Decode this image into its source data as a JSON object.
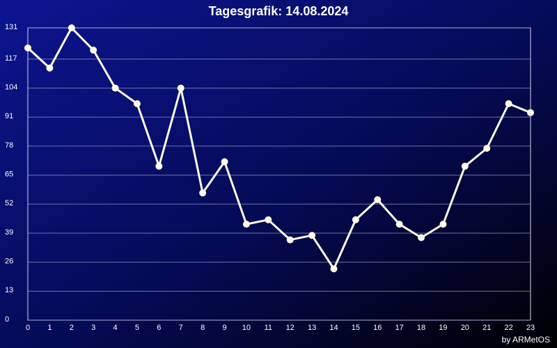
{
  "chart_data": {
    "type": "line",
    "title": "Tagesgrafik: 14.08.2024",
    "credit": "by ARMetOS",
    "x": [
      0,
      1,
      2,
      3,
      4,
      5,
      6,
      7,
      8,
      9,
      10,
      11,
      12,
      13,
      14,
      15,
      16,
      17,
      18,
      19,
      20,
      21,
      22,
      23
    ],
    "values": [
      122,
      113,
      131,
      121,
      104,
      97,
      69,
      104,
      57,
      71,
      43,
      45,
      36,
      38,
      23,
      45,
      54,
      43,
      37,
      43,
      69,
      77,
      97,
      93
    ],
    "color": "#fffbe8",
    "xlim": [
      0,
      23
    ],
    "xticks": [
      0,
      1,
      2,
      3,
      4,
      5,
      6,
      7,
      8,
      9,
      10,
      11,
      12,
      13,
      14,
      15,
      16,
      17,
      18,
      19,
      20,
      21,
      22,
      23
    ],
    "ylim": [
      0,
      131
    ],
    "yticks": [
      0,
      13,
      26,
      39,
      52,
      65,
      78,
      91,
      104,
      117,
      131
    ],
    "grid": true
  }
}
